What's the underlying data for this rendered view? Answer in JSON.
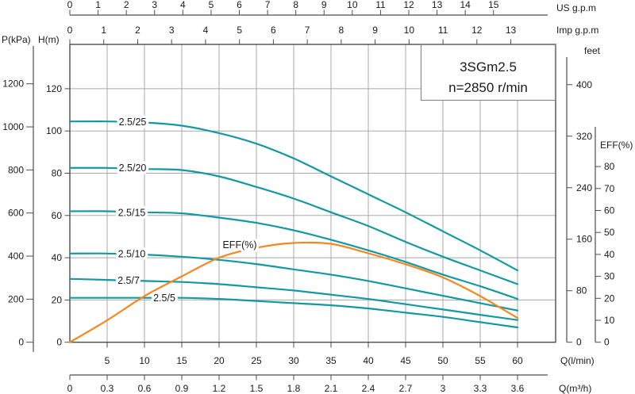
{
  "title_box": {
    "line1": "3SGm2.5",
    "line2": "n=2850 r/min"
  },
  "colors": {
    "head_curve": "#1399a1",
    "efficiency_curve": "#f5871f",
    "grid": "#a8a8a8",
    "axis": "#4d4d4d",
    "text": "#1a1a1a",
    "background": "#ffffff"
  },
  "axes": {
    "us_gpm": {
      "title": "US g.p.m",
      "ticks": [
        0,
        1,
        2,
        3,
        4,
        5,
        6,
        7,
        8,
        9,
        10,
        11,
        12,
        13,
        14,
        15
      ]
    },
    "imp_gpm": {
      "title": "Imp g.p.m",
      "ticks": [
        0,
        1,
        2,
        3,
        4,
        5,
        6,
        7,
        8,
        9,
        10,
        11,
        12,
        13
      ]
    },
    "p_kpa": {
      "title": "P(kPa)",
      "ticks": [
        0,
        200,
        400,
        600,
        800,
        1000,
        1200
      ]
    },
    "h_m": {
      "title": "H(m)",
      "ticks": [
        0,
        20,
        40,
        60,
        80,
        100,
        120
      ]
    },
    "feet": {
      "title": "feet",
      "ticks": [
        0,
        80,
        160,
        240,
        320,
        400
      ]
    },
    "eff_pct": {
      "title": "EFF(%)",
      "ticks": [
        0,
        10,
        20,
        30,
        40,
        50,
        60,
        70,
        80
      ]
    },
    "q_lmin": {
      "title": "Q(l/min)",
      "ticks": [
        5,
        10,
        15,
        20,
        25,
        30,
        35,
        40,
        45,
        50,
        55,
        60
      ]
    },
    "q_m3h": {
      "title": "Q(m³/h)",
      "ticks": [
        "0",
        "0.3",
        "0.6",
        "0.9",
        "1.2",
        "1.5",
        "1.8",
        "2.1",
        "2.4",
        "2.7",
        "3",
        "3.3",
        "3.6"
      ]
    }
  },
  "chart_data": {
    "type": "line",
    "title": "3SGm2.5",
    "subtitle": "n=2850 r/min",
    "xlabel": "Q(l/min)",
    "x": [
      0,
      5,
      10,
      15,
      20,
      25,
      30,
      35,
      40,
      45,
      50,
      55,
      60
    ],
    "x_unit": "l/min",
    "q_range_lmin": [
      0,
      65
    ],
    "head_range_m": [
      0,
      141
    ],
    "eff_range_pct": [
      0,
      98
    ],
    "grid": true,
    "series": [
      {
        "name": "2.5/25",
        "axis": "head_m",
        "color": "#1399a1",
        "values": [
          104.5,
          104.5,
          104,
          102.5,
          99,
          94,
          87,
          78.5,
          70,
          61.5,
          52.5,
          43.5,
          34
        ]
      },
      {
        "name": "2.5/20",
        "axis": "head_m",
        "color": "#1399a1",
        "values": [
          82.5,
          82.5,
          82,
          81.5,
          78.5,
          73.5,
          68,
          61.5,
          55,
          47.5,
          40.5,
          34,
          27.5
        ]
      },
      {
        "name": "2.5/15",
        "axis": "head_m",
        "color": "#1399a1",
        "values": [
          62,
          62,
          61.5,
          61,
          59,
          56.5,
          53,
          48.5,
          43.5,
          38,
          32,
          26.5,
          20.5
        ]
      },
      {
        "name": "2.5/10",
        "axis": "head_m",
        "color": "#1399a1",
        "values": [
          42,
          42,
          41.5,
          40.5,
          39,
          37,
          34.5,
          32,
          29,
          25.5,
          22,
          18.5,
          15
        ]
      },
      {
        "name": "2.5/7",
        "axis": "head_m",
        "color": "#1399a1",
        "values": [
          30,
          29.5,
          29,
          28.5,
          27.5,
          26,
          24.5,
          22.5,
          20.5,
          18,
          15.5,
          13,
          10.5
        ]
      },
      {
        "name": "2.5/5",
        "axis": "head_m",
        "color": "#1399a1",
        "values": [
          21,
          21,
          21,
          21,
          20.5,
          19.5,
          18.5,
          17.5,
          16,
          14,
          12,
          9.5,
          7
        ]
      },
      {
        "name": "EFF(%)",
        "axis": "eff_pct",
        "color": "#f5871f",
        "values": [
          0,
          10,
          21,
          30,
          38.5,
          43,
          45.2,
          44.8,
          40.5,
          35.5,
          29.5,
          21,
          11
        ]
      }
    ]
  }
}
